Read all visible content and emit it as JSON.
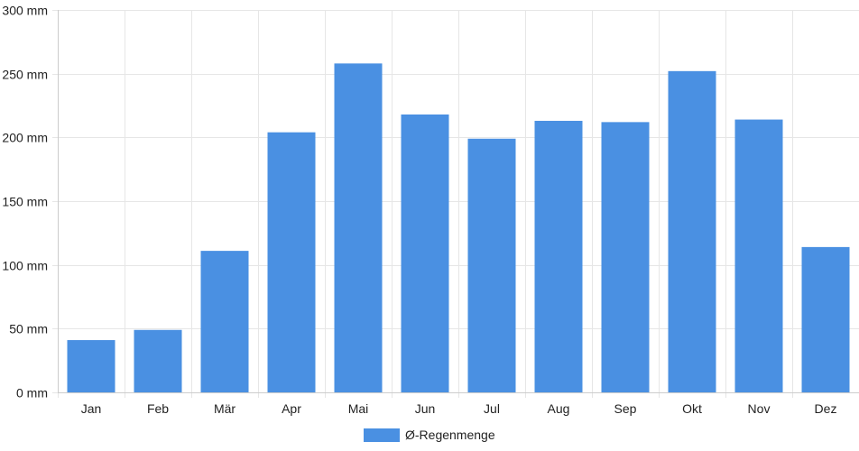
{
  "chart_data": {
    "type": "bar",
    "categories": [
      "Jan",
      "Feb",
      "Mär",
      "Apr",
      "Mai",
      "Jun",
      "Jul",
      "Aug",
      "Sep",
      "Okt",
      "Nov",
      "Dez"
    ],
    "series": [
      {
        "name": "Ø-Regenmenge",
        "values": [
          41,
          49,
          111,
          204,
          258,
          218,
          199,
          213,
          212,
          252,
          214,
          114
        ],
        "color": "#4a90e2"
      }
    ],
    "y_ticks": [
      "0 mm",
      "50 mm",
      "100 mm",
      "150 mm",
      "200 mm",
      "250 mm",
      "300 mm"
    ],
    "ylim": [
      0,
      300
    ],
    "ylabel": "",
    "xlabel": "",
    "title": "",
    "grid": true,
    "legend_position": "bottom"
  },
  "colors": {
    "grid": "#e6e6e6",
    "axis": "#cccccc",
    "text": "#222222"
  }
}
